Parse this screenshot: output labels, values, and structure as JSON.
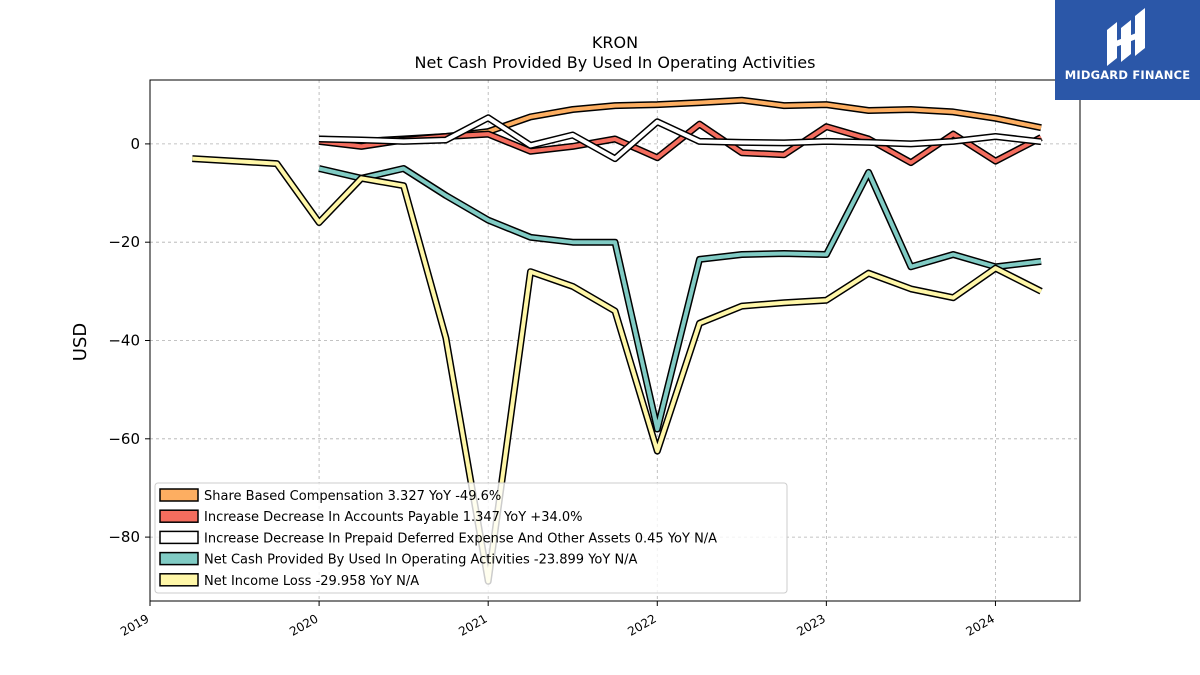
{
  "chart_data": {
    "type": "line",
    "title": "KRON",
    "subtitle": "Net Cash Provided By Used In Operating Activities",
    "ylabel": "USD",
    "xlabel": "",
    "xlim": [
      2019.0,
      2024.5
    ],
    "ylim": [
      -93,
      13
    ],
    "grid": true,
    "legend_position": "lower-left",
    "x_ticks": [
      "2019",
      "2020",
      "2021",
      "2022",
      "2023",
      "2024"
    ],
    "y_ticks": [
      0,
      -20,
      -40,
      -60,
      -80
    ],
    "series": [
      {
        "name": "Share Based Compensation",
        "legend_label": "Share Based Compensation  3.327 YoY -49.6%",
        "color": "#fdae61",
        "x": [
          2020.0,
          2020.25,
          2020.5,
          2020.75,
          2021.0,
          2021.25,
          2021.5,
          2021.75,
          2022.0,
          2022.25,
          2022.5,
          2022.75,
          2023.0,
          2023.25,
          2023.5,
          2023.75,
          2024.0,
          2024.27
        ],
        "y": [
          1.0,
          0.5,
          1.0,
          1.5,
          2.5,
          5.5,
          7.0,
          7.8,
          8.0,
          8.4,
          8.9,
          7.8,
          8.0,
          6.8,
          7.0,
          6.5,
          5.2,
          3.3
        ]
      },
      {
        "name": "Increase Decrease In Accounts Payable",
        "legend_label": "Increase Decrease In Accounts Payable  1.347 YoY +34.0%",
        "color": "#f46d5e",
        "x": [
          2020.0,
          2020.25,
          2020.5,
          2020.75,
          2021.0,
          2021.25,
          2021.5,
          2021.75,
          2022.0,
          2022.25,
          2022.5,
          2022.75,
          2023.0,
          2023.25,
          2023.5,
          2023.75,
          2024.0,
          2024.27
        ],
        "y": [
          0.5,
          -0.5,
          0.8,
          1.5,
          2.0,
          -1.5,
          -0.5,
          1.0,
          -2.8,
          4.0,
          -1.8,
          -2.2,
          3.5,
          1.0,
          -3.8,
          2.0,
          -3.5,
          1.3
        ]
      },
      {
        "name": "Increase Decrease In Prepaid Deferred Expense And Other Assets",
        "legend_label": "Increase Decrease In Prepaid Deferred Expense And Other Assets  0.45 YoY N/A",
        "color": "#ffffff",
        "x": [
          2020.0,
          2020.25,
          2020.5,
          2020.75,
          2021.0,
          2021.25,
          2021.5,
          2021.75,
          2022.0,
          2022.25,
          2022.5,
          2022.75,
          2023.0,
          2023.25,
          2023.5,
          2023.75,
          2024.0,
          2024.27
        ],
        "y": [
          1.0,
          0.8,
          0.5,
          0.8,
          5.3,
          -0.3,
          1.8,
          -3.0,
          4.5,
          0.5,
          0.3,
          0.2,
          0.5,
          0.3,
          0.0,
          0.5,
          1.5,
          0.45
        ]
      },
      {
        "name": "Net Cash Provided By Used In Operating Activities",
        "legend_label": "Net Cash Provided By Used In Operating Activities  -23.899 YoY N/A",
        "color": "#80cbc4",
        "x": [
          2020.0,
          2020.25,
          2020.5,
          2020.75,
          2021.0,
          2021.25,
          2021.5,
          2021.75,
          2022.0,
          2022.25,
          2022.5,
          2022.75,
          2023.0,
          2023.25,
          2023.5,
          2023.75,
          2024.0,
          2024.27
        ],
        "y": [
          -5.0,
          -7.0,
          -5.0,
          -10.5,
          -15.5,
          -19.0,
          -20.0,
          -20.0,
          -58.0,
          -23.5,
          -22.5,
          -22.3,
          -22.5,
          -5.8,
          -25.0,
          -22.5,
          -25.0,
          -23.9
        ]
      },
      {
        "name": "Net Income Loss",
        "legend_label": "Net Income Loss  -29.958 YoY N/A",
        "color": "#fff7a8",
        "x": [
          2019.25,
          2019.5,
          2019.75,
          2020.0,
          2020.25,
          2020.5,
          2020.75,
          2021.0,
          2021.25,
          2021.5,
          2021.75,
          2022.0,
          2022.25,
          2022.5,
          2022.75,
          2023.0,
          2023.25,
          2023.5,
          2023.75,
          2024.0,
          2024.27
        ],
        "y": [
          -3.0,
          -3.5,
          -4.0,
          -16.0,
          -7.0,
          -8.5,
          -39.5,
          -89.0,
          -26.0,
          -29.0,
          -34.0,
          -62.5,
          -36.5,
          -33.0,
          -32.3,
          -31.8,
          -26.3,
          -29.5,
          -31.3,
          -25.3,
          -30.0
        ]
      }
    ]
  },
  "logo": {
    "text": "MIDGARD FINANCE",
    "background_color": "#2b57a8"
  }
}
